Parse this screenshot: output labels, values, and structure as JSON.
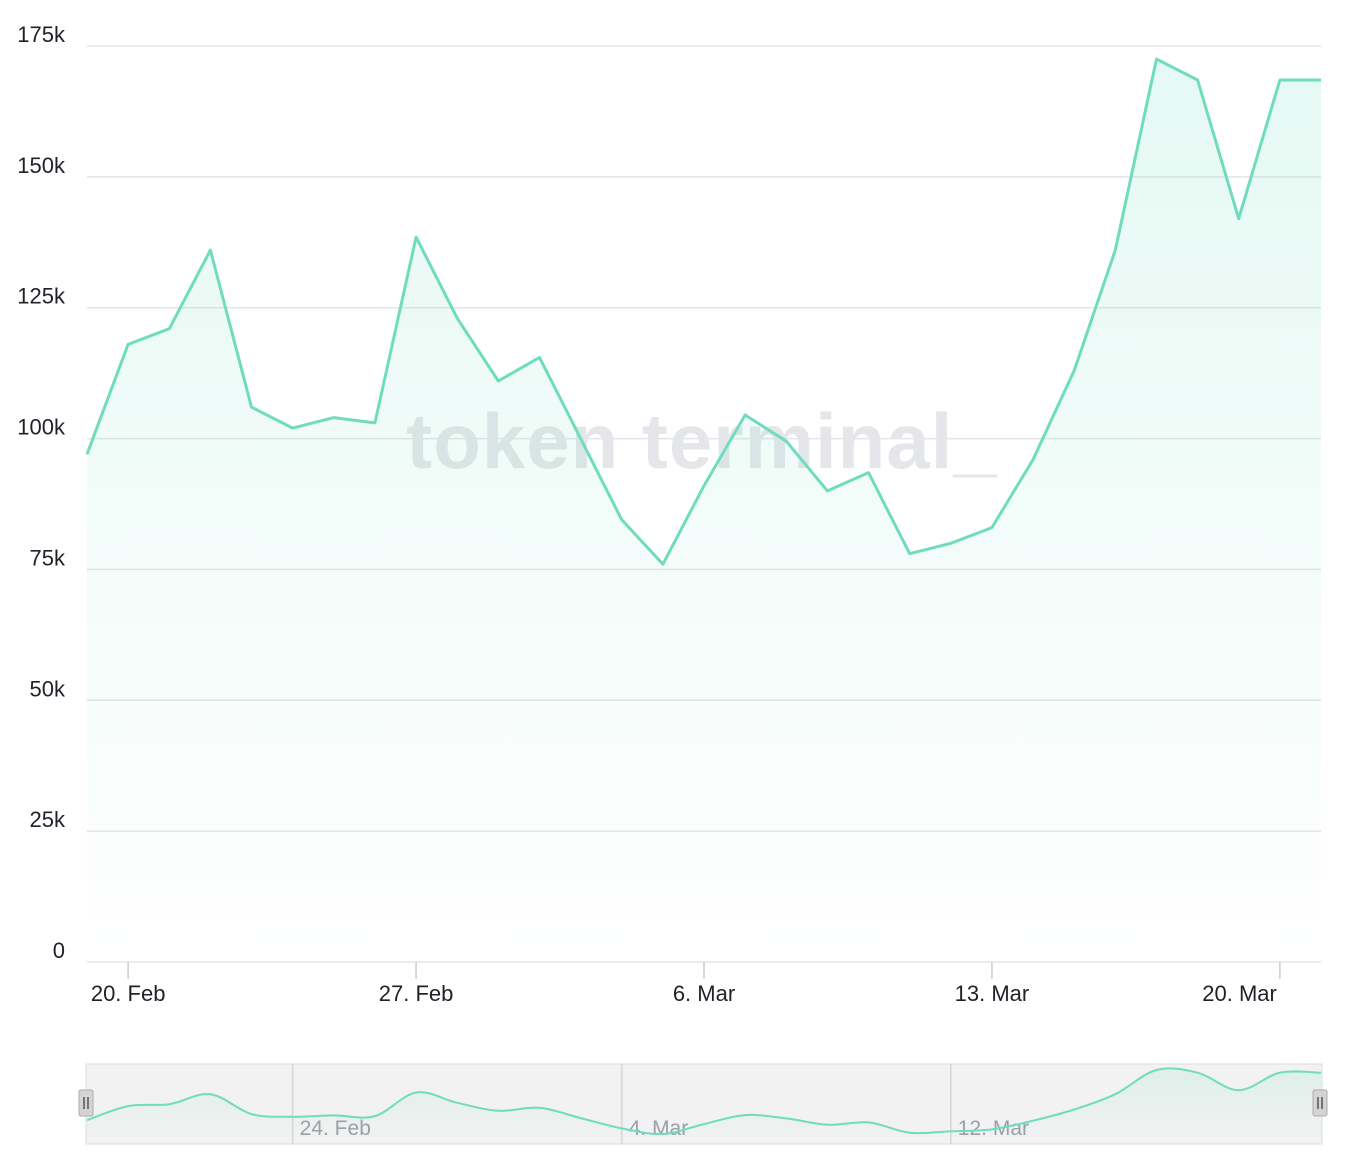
{
  "watermark": "token terminal_",
  "colors": {
    "line": "#6fdcbd",
    "area_top": "#6fdcbd",
    "grid": "#e3e5e8",
    "navigator_bg": "#f2f2f2",
    "navigator_handle": "#d4d4d4"
  },
  "chart_data": {
    "type": "area",
    "title": "",
    "xlabel": "",
    "ylabel": "",
    "ylim": [
      0,
      175000
    ],
    "yticks": [
      {
        "value": 0,
        "label": "0"
      },
      {
        "value": 25000,
        "label": "25k"
      },
      {
        "value": 50000,
        "label": "50k"
      },
      {
        "value": 75000,
        "label": "75k"
      },
      {
        "value": 100000,
        "label": "100k"
      },
      {
        "value": 125000,
        "label": "125k"
      },
      {
        "value": 150000,
        "label": "150k"
      },
      {
        "value": 175000,
        "label": "175k"
      }
    ],
    "xlim": [
      "2023-02-19",
      "2023-03-21"
    ],
    "xticks": [
      {
        "date": "2023-02-20",
        "label": "20. Feb"
      },
      {
        "date": "2023-02-27",
        "label": "27. Feb"
      },
      {
        "date": "2023-03-06",
        "label": "6. Mar"
      },
      {
        "date": "2023-03-13",
        "label": "13. Mar"
      },
      {
        "date": "2023-03-20",
        "label": "20. Mar"
      }
    ],
    "grid": true,
    "legend": "none",
    "series": [
      {
        "x": [
          "2023-02-19",
          "2023-02-20",
          "2023-02-21",
          "2023-02-22",
          "2023-02-23",
          "2023-02-24",
          "2023-02-25",
          "2023-02-26",
          "2023-02-27",
          "2023-02-28",
          "2023-03-01",
          "2023-03-02",
          "2023-03-03",
          "2023-03-04",
          "2023-03-05",
          "2023-03-06",
          "2023-03-07",
          "2023-03-08",
          "2023-03-09",
          "2023-03-10",
          "2023-03-11",
          "2023-03-12",
          "2023-03-13",
          "2023-03-14",
          "2023-03-15",
          "2023-03-16",
          "2023-03-17",
          "2023-03-18",
          "2023-03-19",
          "2023-03-20",
          "2023-03-21"
        ],
        "values": [
          97000,
          118000,
          121000,
          136000,
          106000,
          102000,
          104000,
          103000,
          138500,
          123000,
          111000,
          115500,
          100000,
          84500,
          76000,
          91000,
          104500,
          99500,
          90000,
          93500,
          78000,
          80000,
          83000,
          96000,
          113000,
          136000,
          172500,
          168500,
          142000,
          168500,
          168500
        ]
      }
    ],
    "navigator": {
      "xticks": [
        {
          "date": "2023-02-24",
          "label": "24. Feb"
        },
        {
          "date": "2023-03-04",
          "label": "4. Mar"
        },
        {
          "date": "2023-03-12",
          "label": "12. Mar"
        }
      ]
    }
  }
}
